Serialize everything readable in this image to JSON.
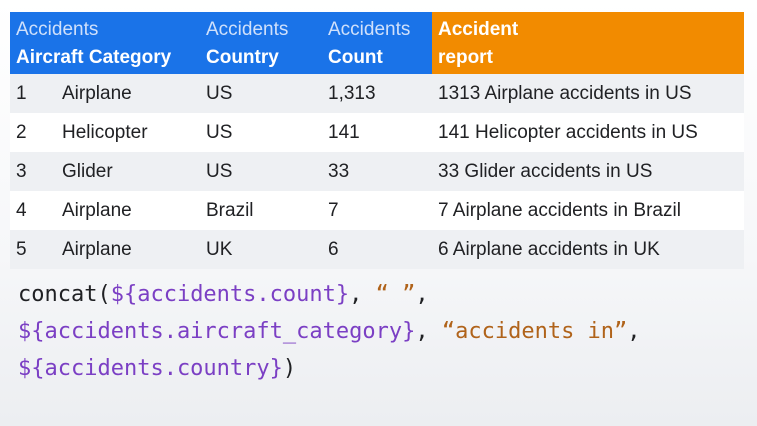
{
  "header": {
    "col1_line1": "Accidents",
    "col1_line2": "Aircraft Category",
    "col2_line1": "Accidents",
    "col2_line2": "Country",
    "col3_line1": "Accidents",
    "col3_line2": "Count",
    "col4_line1": "Accident",
    "col4_line2": "report"
  },
  "rows": [
    {
      "num": "1",
      "category": "Airplane",
      "country": "US",
      "count": "1,313",
      "report": "1313 Airplane accidents in US"
    },
    {
      "num": "2",
      "category": "Helicopter",
      "country": "US",
      "count": "141",
      "report": "141 Helicopter accidents in US"
    },
    {
      "num": "3",
      "category": "Glider",
      "country": "US",
      "count": "33",
      "report": "33 Glider accidents in US"
    },
    {
      "num": "4",
      "category": "Airplane",
      "country": "Brazil",
      "count": "7",
      "report": "7 Airplane accidents in Brazil"
    },
    {
      "num": "5",
      "category": "Airplane",
      "country": "UK",
      "count": "6",
      "report": "6 Airplane accidents in UK"
    }
  ],
  "code": {
    "fn": "concat(",
    "var_count": "${accidents.count}",
    "sep1": ", ",
    "str_space": "“ ”",
    "comma1": ",",
    "var_category": "${accidents.aircraft_category}",
    "sep2": ", ",
    "str_in": "“accidents in”",
    "comma2": ",",
    "var_country": "${accidents.country}",
    "close": ")"
  },
  "colors": {
    "header_blue": "#1a73e8",
    "header_orange": "#f28b00",
    "code_variable": "#7b3fc4",
    "code_string": "#b0631a"
  }
}
